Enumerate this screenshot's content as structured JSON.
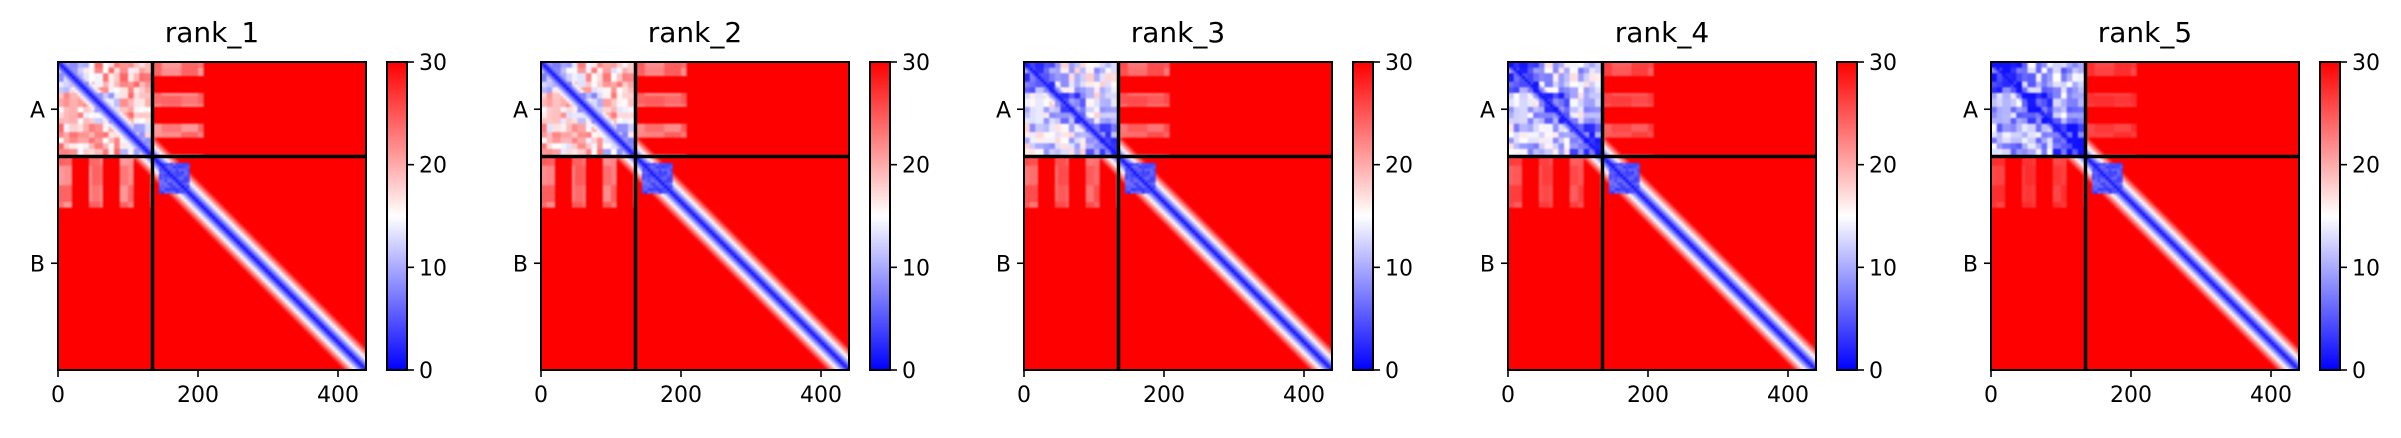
{
  "chart_data": {
    "type": "heatmap",
    "figure_kind": "predicted aligned error matrices",
    "colormap": [
      "#0000ff",
      "#ffffff",
      "#ff0000"
    ],
    "color_range": [
      0,
      30
    ],
    "colorbar_ticks": [
      "0",
      "10",
      "20",
      "30"
    ],
    "axis_range": [
      0,
      440
    ],
    "x_ticks": [
      {
        "value": 0,
        "label": "0"
      },
      {
        "value": 200,
        "label": "200"
      },
      {
        "value": 400,
        "label": "400"
      }
    ],
    "chains": [
      {
        "label": "A",
        "start": 0,
        "end": 135
      },
      {
        "label": "B",
        "start": 135,
        "end": 440
      }
    ],
    "chain_boundary": 135,
    "panels": [
      {
        "title": "rank_1",
        "chainA_block_mean": 13,
        "offdiag_tint_strength": 0.65,
        "diag_domain_size": 55
      },
      {
        "title": "rank_2",
        "chainA_block_mean": 12,
        "offdiag_tint_strength": 0.6,
        "diag_domain_size": 55
      },
      {
        "title": "rank_3",
        "chainA_block_mean": 7,
        "offdiag_tint_strength": 0.5,
        "diag_domain_size": 55
      },
      {
        "title": "rank_4",
        "chainA_block_mean": 6,
        "offdiag_tint_strength": 0.4,
        "diag_domain_size": 55
      },
      {
        "title": "rank_5",
        "chainA_block_mean": 4,
        "offdiag_tint_strength": 0.3,
        "diag_domain_size": 55
      }
    ]
  }
}
